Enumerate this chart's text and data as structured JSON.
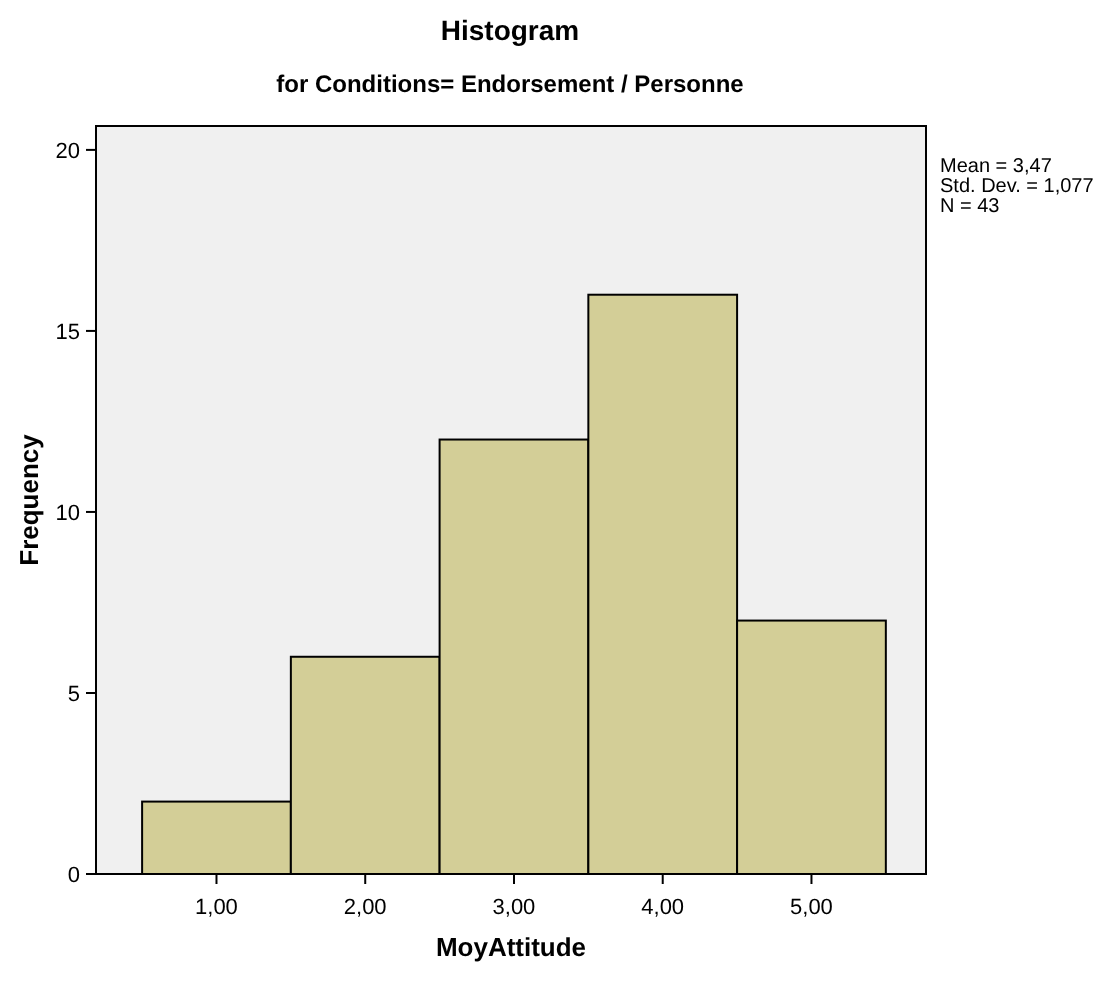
{
  "chart_data": {
    "type": "histogram",
    "title": "Histogram",
    "subtitle": "for Conditions= Endorsement / Personne",
    "xlabel": "MoyAttitude",
    "ylabel": "Frequency",
    "bins": [
      0.5,
      1.5,
      2.5,
      3.5,
      4.5,
      5.5
    ],
    "values": [
      2,
      6,
      12,
      16,
      7
    ],
    "color": "#d3ce97",
    "xlim": [
      0.19,
      5.77
    ],
    "ylim": [
      0,
      20.66
    ],
    "xticks": [
      {
        "value": 1,
        "label": "1,00"
      },
      {
        "value": 2,
        "label": "2,00"
      },
      {
        "value": 3,
        "label": "3,00"
      },
      {
        "value": 4,
        "label": "4,00"
      },
      {
        "value": 5,
        "label": "5,00"
      }
    ],
    "yticks": [
      0,
      5,
      10,
      15,
      20
    ],
    "annotations": [
      "Mean = 3,47",
      "Std. Dev. = 1,077",
      "N = 43"
    ]
  }
}
